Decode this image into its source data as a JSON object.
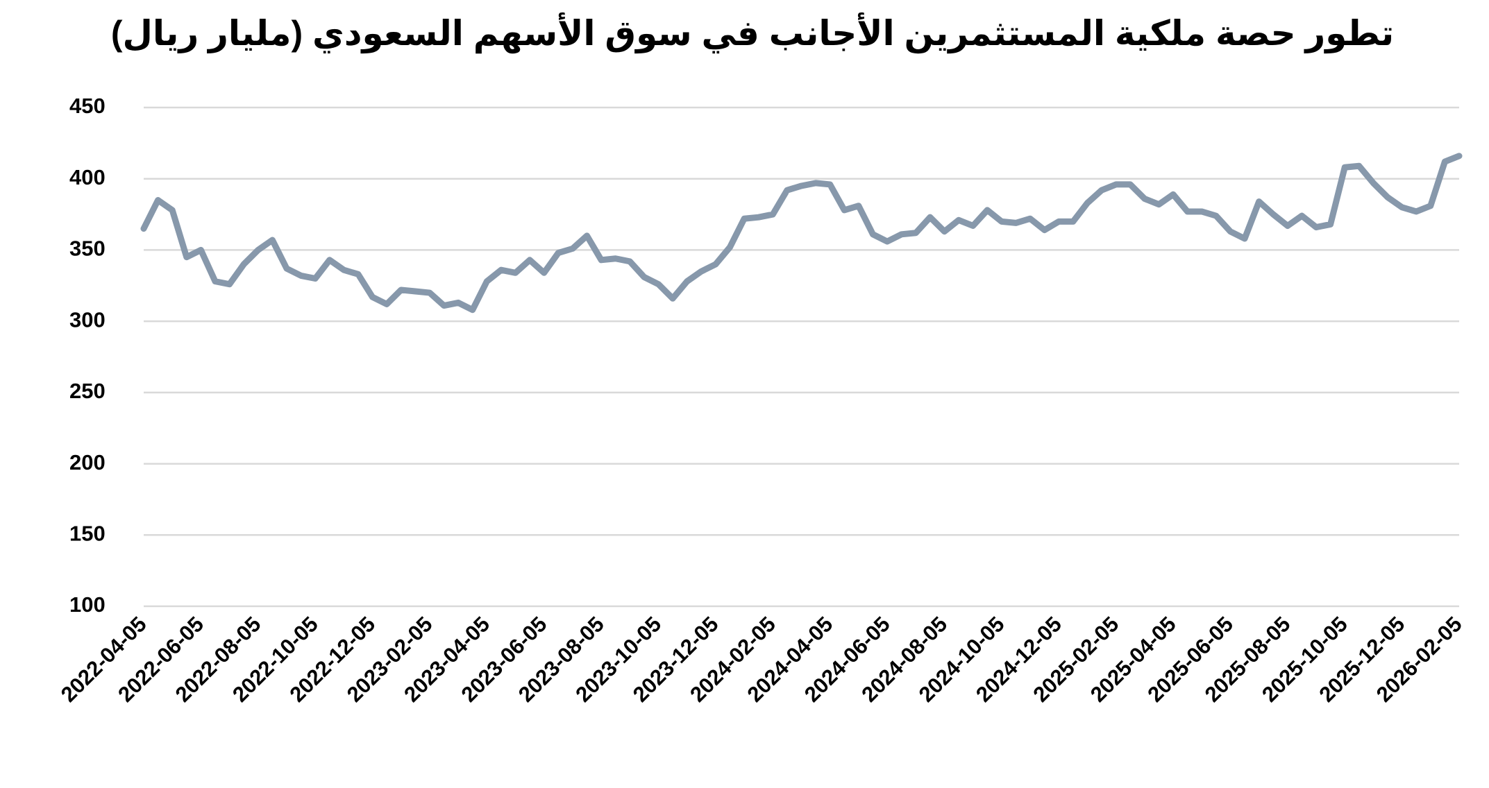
{
  "chart_data": {
    "type": "line",
    "title": "تطور حصة ملكية المستثمرين الأجانب في سوق الأسهم السعودي (مليار ريال)",
    "categories": [
      "2022-04-05",
      null,
      null,
      null,
      "2022-06-05",
      null,
      null,
      null,
      "2022-08-05",
      null,
      null,
      null,
      "2022-10-05",
      null,
      null,
      null,
      "2022-12-05",
      null,
      null,
      null,
      "2023-02-05",
      null,
      null,
      null,
      "2023-04-05",
      null,
      null,
      null,
      "2023-06-05",
      null,
      null,
      null,
      "2023-08-05",
      null,
      null,
      null,
      "2023-10-05",
      null,
      null,
      null,
      "2023-12-05",
      null,
      null,
      null,
      "2024-02-05",
      null,
      null,
      null,
      "2024-04-05",
      null,
      null,
      null,
      "2024-06-05",
      null,
      null,
      null,
      "2024-08-05",
      null,
      null,
      null,
      "2024-10-05",
      null,
      null,
      null,
      "2024-12-05",
      null,
      null,
      null,
      "2025-02-05",
      null,
      null,
      null,
      "2025-04-05",
      null,
      null,
      null,
      "2025-06-05",
      null,
      null,
      null,
      "2025-08-05",
      null,
      null,
      null,
      "2025-10-05",
      null,
      null,
      null,
      "2025-12-05",
      null,
      null,
      null,
      "2026-02-05"
    ],
    "series": [
      {
        "color": "#8798ab",
        "values": [
          365,
          385,
          378,
          345,
          350,
          328,
          326,
          340,
          350,
          357,
          337,
          332,
          330,
          343,
          336,
          333,
          317,
          312,
          322,
          321,
          320,
          311,
          313,
          308,
          328,
          336,
          334,
          343,
          334,
          348,
          351,
          360,
          343,
          344,
          342,
          331,
          326,
          316,
          328,
          335,
          340,
          352,
          372,
          373,
          375,
          392,
          395,
          397,
          396,
          378,
          381,
          361,
          356,
          361,
          362,
          373,
          363,
          371,
          367,
          378,
          370,
          369,
          372,
          364,
          370,
          370,
          383,
          392,
          396,
          396,
          386,
          382,
          389,
          377,
          377,
          374,
          363,
          358,
          384,
          375,
          367,
          374,
          366,
          368,
          408,
          409,
          397,
          387,
          380,
          377,
          381,
          412,
          416
        ]
      }
    ],
    "ylim": [
      100,
      450
    ],
    "yticks": [
      100,
      150,
      200,
      250,
      300,
      350,
      400,
      450
    ],
    "grid": true
  }
}
